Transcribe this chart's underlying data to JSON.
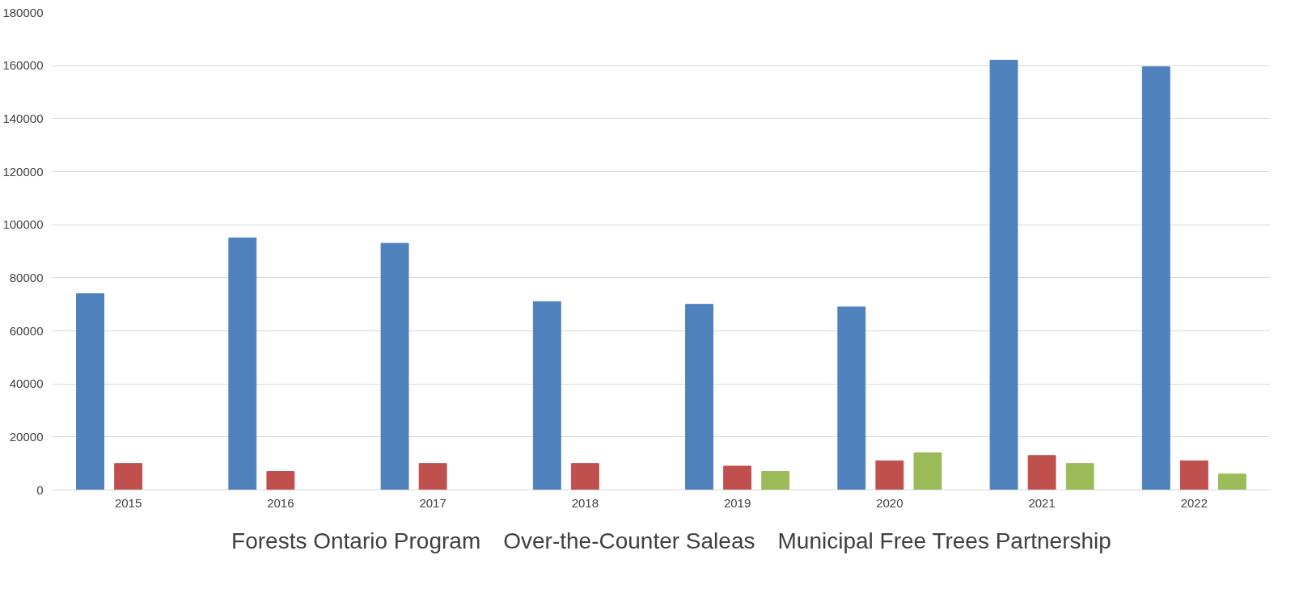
{
  "chart_data": {
    "type": "bar",
    "categories": [
      "2015",
      "2016",
      "2017",
      "2018",
      "2019",
      "2020",
      "2021",
      "2022"
    ],
    "series": [
      {
        "name": "Forests Ontario Program",
        "color": "#4f81bd",
        "values": [
          74000,
          95000,
          93000,
          71000,
          70000,
          69000,
          162000,
          159500
        ]
      },
      {
        "name": "Over-the-Counter Saleas",
        "color": "#c0504d",
        "values": [
          10000,
          7000,
          10000,
          10000,
          9000,
          11000,
          13000,
          11000
        ]
      },
      {
        "name": "Municipal Free Trees Partnership",
        "color": "#9bbb59",
        "values": [
          null,
          null,
          null,
          null,
          7000,
          14000,
          10000,
          6000
        ]
      }
    ],
    "ylim": [
      0,
      180000
    ],
    "yticks": [
      0,
      20000,
      40000,
      60000,
      80000,
      100000,
      120000,
      140000,
      160000,
      180000
    ],
    "grid": "y",
    "legend": "bottom"
  }
}
